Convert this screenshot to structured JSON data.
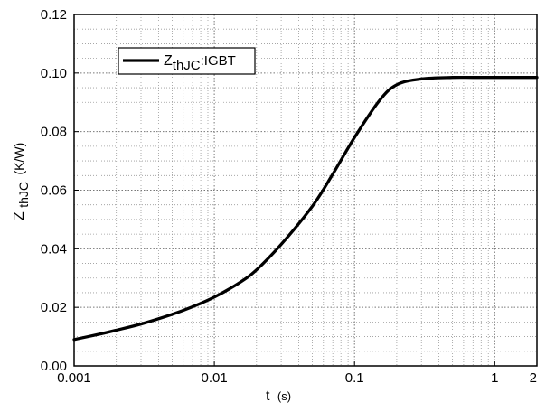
{
  "chart_data": {
    "type": "line",
    "x_scale": "log",
    "xlim": [
      0.001,
      2
    ],
    "ylim": [
      0,
      0.12
    ],
    "xticks": [
      {
        "value": 0.001,
        "label": "0.001"
      },
      {
        "value": 0.01,
        "label": "0.01"
      },
      {
        "value": 0.1,
        "label": "0.1"
      },
      {
        "value": 1,
        "label": "1"
      },
      {
        "value": 2,
        "label": "2"
      }
    ],
    "yticks": [
      {
        "value": 0.0,
        "label": "0.00"
      },
      {
        "value": 0.02,
        "label": "0.02"
      },
      {
        "value": 0.04,
        "label": "0.04"
      },
      {
        "value": 0.06,
        "label": "0.06"
      },
      {
        "value": 0.08,
        "label": "0.08"
      },
      {
        "value": 0.1,
        "label": "0.10"
      },
      {
        "value": 0.12,
        "label": "0.12"
      }
    ],
    "xlabel": {
      "main": "t",
      "unit": "(s)"
    },
    "ylabel": {
      "main": "Z",
      "sub": "thJC",
      "unit": "(K/W)"
    },
    "legend": {
      "position": "top-left",
      "main": "Z",
      "sub": "thJC",
      "suffix": ":IGBT"
    },
    "grid": true,
    "series": [
      {
        "name": "ZthJC:IGBT",
        "color": "#000000",
        "x": [
          0.001,
          0.0015,
          0.002,
          0.003,
          0.005,
          0.007,
          0.01,
          0.015,
          0.02,
          0.03,
          0.05,
          0.07,
          0.1,
          0.15,
          0.2,
          0.3,
          0.5,
          0.7,
          1,
          2
        ],
        "y": [
          0.009,
          0.0108,
          0.0122,
          0.0143,
          0.0176,
          0.0202,
          0.0235,
          0.0283,
          0.0328,
          0.0415,
          0.0545,
          0.0655,
          0.078,
          0.0905,
          0.096,
          0.098,
          0.0985,
          0.0985,
          0.0985,
          0.0985
        ]
      }
    ]
  }
}
